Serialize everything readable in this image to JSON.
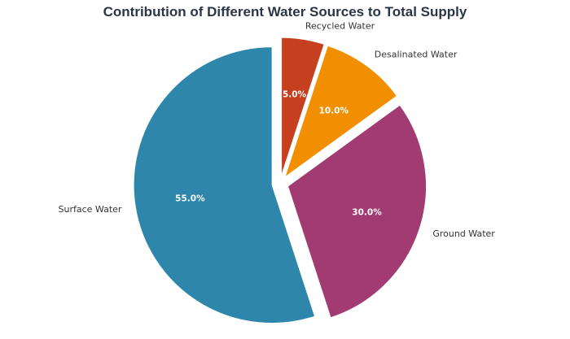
{
  "chart_data": {
    "type": "pie",
    "title": "Contribution of Different Water Sources to Total Supply",
    "start_angle_deg": 90,
    "direction": "clockwise",
    "slices": [
      {
        "label": "Recycled Water",
        "value": 5.0,
        "pct_label": "5.0%",
        "color": "#c63f1f"
      },
      {
        "label": "Desalinated Water",
        "value": 10.0,
        "pct_label": "10.0%",
        "color": "#f18f01"
      },
      {
        "label": "Ground Water",
        "value": 30.0,
        "pct_label": "30.0%",
        "color": "#a23b72"
      },
      {
        "label": "Surface Water",
        "value": 55.0,
        "pct_label": "55.0%",
        "color": "#2e86ab"
      }
    ]
  }
}
